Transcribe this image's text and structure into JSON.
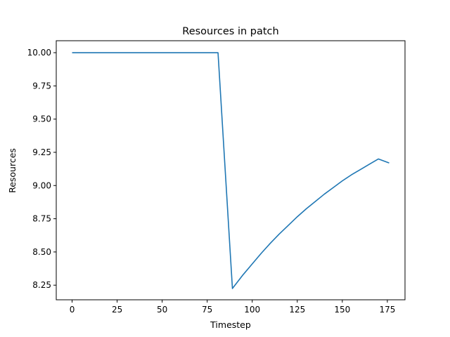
{
  "chart_data": {
    "type": "line",
    "title": "Resources in patch",
    "xlabel": "Timestep",
    "ylabel": "Resources",
    "xlim": [
      -8.8,
      184.8
    ],
    "ylim": [
      8.14,
      10.09
    ],
    "xticks": [
      0,
      25,
      50,
      75,
      100,
      125,
      150,
      175
    ],
    "yticks": [
      8.25,
      8.5,
      8.75,
      9.0,
      9.25,
      9.5,
      9.75,
      10.0
    ],
    "ytick_labels": [
      "8.25",
      "8.50",
      "8.75",
      "9.00",
      "9.25",
      "9.50",
      "9.75",
      "10.00"
    ],
    "xtick_labels": [
      "0",
      "25",
      "50",
      "75",
      "100",
      "125",
      "150",
      "175"
    ],
    "grid": false,
    "legend": "none",
    "series": [
      {
        "color": "#1f77b4",
        "x": [
          0,
          10,
          20,
          30,
          40,
          50,
          60,
          70,
          81,
          89,
          95,
          100,
          105,
          110,
          115,
          120,
          125,
          130,
          135,
          140,
          145,
          150,
          155,
          160,
          165,
          170,
          176
        ],
        "values": [
          10.0,
          10.0,
          10.0,
          10.0,
          10.0,
          10.0,
          10.0,
          10.0,
          10.0,
          8.225,
          8.33,
          8.41,
          8.49,
          8.565,
          8.635,
          8.7,
          8.765,
          8.825,
          8.88,
          8.935,
          8.985,
          9.035,
          9.08,
          9.12,
          9.16,
          9.2,
          9.17
        ]
      }
    ]
  }
}
